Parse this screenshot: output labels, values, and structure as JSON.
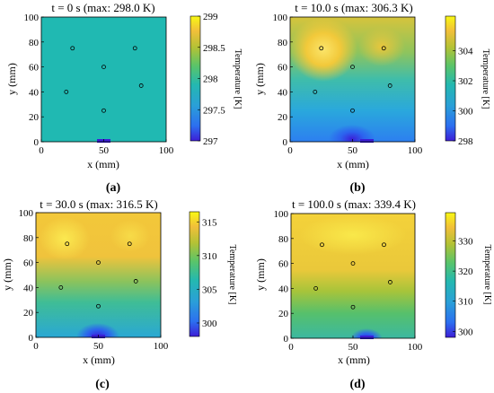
{
  "chart_data": [
    {
      "type": "heatmap",
      "panel_label": "(a)",
      "title": "t = 0 s (max: 298.0 K)",
      "xlabel": "x (mm)",
      "ylabel": "y (mm)",
      "xlim": [
        0,
        100
      ],
      "ylim": [
        0,
        100
      ],
      "xticks": [
        "0",
        "50",
        "100"
      ],
      "yticks": [
        "0",
        "20",
        "40",
        "60",
        "80",
        "100"
      ],
      "colorbar_label": "Temperature [K]",
      "colorbar_range": [
        297,
        299
      ],
      "colorbar_ticks": [
        "297",
        "297.5",
        "298",
        "298.5",
        "299"
      ],
      "field": "uniform 298.0 K",
      "sensor_points": [
        [
          25,
          75
        ],
        [
          75,
          75
        ],
        [
          50,
          60
        ],
        [
          20,
          40
        ],
        [
          80,
          45
        ],
        [
          50,
          25
        ]
      ],
      "heater": {
        "x": [
          45,
          55
        ],
        "y": 0
      }
    },
    {
      "type": "heatmap",
      "panel_label": "(b)",
      "title": "t = 10.0 s (max: 306.3 K)",
      "xlabel": "x (mm)",
      "ylabel": "y (mm)",
      "xlim": [
        0,
        100
      ],
      "ylim": [
        0,
        100
      ],
      "xticks": [
        "0",
        "50",
        "100"
      ],
      "yticks": [
        "0",
        "20",
        "40",
        "60",
        "80",
        "100"
      ],
      "colorbar_label": "Temperature [K]",
      "colorbar_range": [
        298,
        306.3
      ],
      "colorbar_ticks": [
        "298",
        "300",
        "302",
        "304"
      ],
      "sensor_points": [
        [
          25,
          75
        ],
        [
          75,
          75
        ],
        [
          50,
          60
        ],
        [
          20,
          40
        ],
        [
          80,
          45
        ],
        [
          50,
          25
        ]
      ],
      "heater": {
        "x": [
          45,
          55
        ],
        "y": 0
      }
    },
    {
      "type": "heatmap",
      "panel_label": "(c)",
      "title": "t = 30.0 s (max: 316.5 K)",
      "xlabel": "x (mm)",
      "ylabel": "y (mm)",
      "xlim": [
        0,
        100
      ],
      "ylim": [
        0,
        100
      ],
      "xticks": [
        "0",
        "50",
        "100"
      ],
      "yticks": [
        "0",
        "20",
        "40",
        "60",
        "80",
        "100"
      ],
      "colorbar_label": "Temperature [K]",
      "colorbar_range": [
        298,
        316.5
      ],
      "colorbar_ticks": [
        "300",
        "305",
        "310",
        "315"
      ],
      "sensor_points": [
        [
          25,
          75
        ],
        [
          75,
          75
        ],
        [
          50,
          60
        ],
        [
          20,
          40
        ],
        [
          80,
          45
        ],
        [
          50,
          25
        ]
      ],
      "heater": {
        "x": [
          45,
          55
        ],
        "y": 0
      }
    },
    {
      "type": "heatmap",
      "panel_label": "(d)",
      "title": "t = 100.0 s (max: 339.4 K)",
      "xlabel": "x (mm)",
      "ylabel": "y (mm)",
      "xlim": [
        0,
        100
      ],
      "ylim": [
        0,
        100
      ],
      "xticks": [
        "0",
        "50",
        "100"
      ],
      "yticks": [
        "0",
        "20",
        "40",
        "60",
        "80",
        "100"
      ],
      "colorbar_label": "Temperature [K]",
      "colorbar_range": [
        298,
        339.4
      ],
      "colorbar_ticks": [
        "300",
        "310",
        "320",
        "330"
      ],
      "sensor_points": [
        [
          25,
          75
        ],
        [
          75,
          75
        ],
        [
          50,
          60
        ],
        [
          20,
          40
        ],
        [
          80,
          45
        ],
        [
          50,
          25
        ]
      ],
      "heater": {
        "x": [
          45,
          55
        ],
        "y": 0
      }
    }
  ]
}
